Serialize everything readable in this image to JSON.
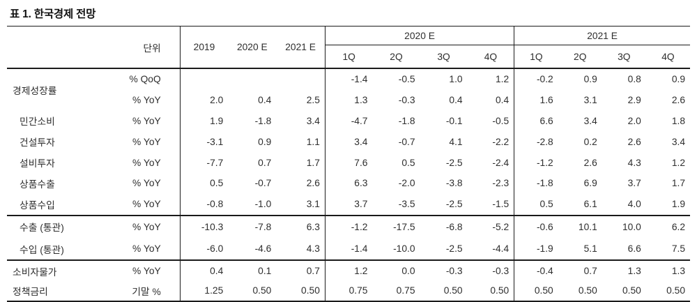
{
  "title": "표 1. 한국경제 전망",
  "colors": {
    "text": "#2e2e2e",
    "line": "#1a1a1a",
    "background": "#ffffff"
  },
  "table": {
    "header": {
      "unit_label": "단위",
      "annual_columns": [
        "2019",
        "2020 E",
        "2021 E"
      ],
      "groups": [
        {
          "label": "2020 E",
          "quarters": [
            "1Q",
            "2Q",
            "3Q",
            "4Q"
          ]
        },
        {
          "label": "2021 E",
          "quarters": [
            "1Q",
            "2Q",
            "3Q",
            "4Q"
          ]
        }
      ]
    },
    "rows": [
      {
        "label": "경제성장률",
        "label_rowspan": 2,
        "indent": false,
        "group": "gm",
        "section_start": false,
        "unit": "% QoQ",
        "annual": [
          "",
          "",
          ""
        ],
        "q2020": [
          "-1.4",
          "-0.5",
          "1.0",
          "1.2"
        ],
        "q2021": [
          "-0.2",
          "0.9",
          "0.8",
          "0.9"
        ]
      },
      {
        "label": null,
        "indent": false,
        "group": "gm",
        "section_start": false,
        "unit": "% YoY",
        "annual": [
          "2.0",
          "0.4",
          "2.5"
        ],
        "q2020": [
          "1.3",
          "-0.3",
          "0.4",
          "0.4"
        ],
        "q2021": [
          "1.6",
          "3.1",
          "2.9",
          "2.6"
        ]
      },
      {
        "label": "민간소비",
        "indent": true,
        "group": "gm",
        "section_start": false,
        "unit": "% YoY",
        "annual": [
          "1.9",
          "-1.8",
          "3.4"
        ],
        "q2020": [
          "-4.7",
          "-1.8",
          "-0.1",
          "-0.5"
        ],
        "q2021": [
          "6.6",
          "3.4",
          "2.0",
          "1.8"
        ]
      },
      {
        "label": "건설투자",
        "indent": true,
        "group": "gm",
        "section_start": false,
        "unit": "% YoY",
        "annual": [
          "-3.1",
          "0.9",
          "1.1"
        ],
        "q2020": [
          "3.4",
          "-0.7",
          "4.1",
          "-2.2"
        ],
        "q2021": [
          "-2.8",
          "0.2",
          "2.6",
          "3.4"
        ]
      },
      {
        "label": "설비투자",
        "indent": true,
        "group": "gm",
        "section_start": false,
        "unit": "% YoY",
        "annual": [
          "-7.7",
          "0.7",
          "1.7"
        ],
        "q2020": [
          "7.6",
          "0.5",
          "-2.5",
          "-2.4"
        ],
        "q2021": [
          "-1.2",
          "2.6",
          "4.3",
          "1.2"
        ]
      },
      {
        "label": "상품수출",
        "indent": true,
        "group": "gm",
        "section_start": false,
        "unit": "% YoY",
        "annual": [
          "0.5",
          "-0.7",
          "2.6"
        ],
        "q2020": [
          "6.3",
          "-2.0",
          "-3.8",
          "-2.3"
        ],
        "q2021": [
          "-1.8",
          "6.9",
          "3.7",
          "1.7"
        ]
      },
      {
        "label": "상품수입",
        "indent": true,
        "group": "gm",
        "section_start": false,
        "unit": "% YoY",
        "annual": [
          "-0.8",
          "-1.0",
          "3.1"
        ],
        "q2020": [
          "3.7",
          "-3.5",
          "-2.5",
          "-1.5"
        ],
        "q2021": [
          "0.5",
          "6.1",
          "4.0",
          "1.9"
        ]
      },
      {
        "label": "수출 (통관)",
        "indent": true,
        "group": "gc",
        "section_start": true,
        "unit": "% YoY",
        "annual": [
          "-10.3",
          "-7.8",
          "6.3"
        ],
        "q2020": [
          "-1.2",
          "-17.5",
          "-6.8",
          "-5.2"
        ],
        "q2021": [
          "-0.6",
          "10.1",
          "10.0",
          "6.2"
        ]
      },
      {
        "label": "수입 (통관)",
        "indent": true,
        "group": "gc",
        "section_start": false,
        "unit": "% YoY",
        "annual": [
          "-6.0",
          "-4.6",
          "4.3"
        ],
        "q2020": [
          "-1.4",
          "-10.0",
          "-2.5",
          "-4.4"
        ],
        "q2021": [
          "-1.9",
          "5.1",
          "6.6",
          "7.5"
        ]
      },
      {
        "label": "소비자물가",
        "indent": false,
        "group": "gp",
        "section_start": true,
        "unit": "% YoY",
        "annual": [
          "0.4",
          "0.1",
          "0.7"
        ],
        "q2020": [
          "1.2",
          "0.0",
          "-0.3",
          "-0.3"
        ],
        "q2021": [
          "-0.4",
          "0.7",
          "1.3",
          "1.3"
        ]
      },
      {
        "label": "정책금리",
        "indent": false,
        "group": "gp",
        "section_start": false,
        "unit": "기말 %",
        "annual": [
          "1.25",
          "0.50",
          "0.50"
        ],
        "q2020": [
          "0.75",
          "0.75",
          "0.50",
          "0.50"
        ],
        "q2021": [
          "0.50",
          "0.50",
          "0.50",
          "0.50"
        ]
      }
    ]
  }
}
